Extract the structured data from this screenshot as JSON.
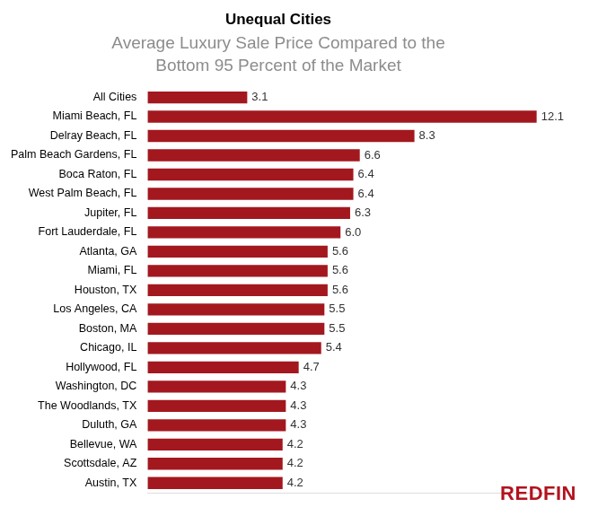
{
  "chart_data": {
    "type": "bar",
    "orientation": "horizontal",
    "title": "Unequal Cities",
    "subtitle": [
      "Average Luxury Sale Price Compared to the",
      "Bottom 95 Percent of the Market"
    ],
    "annotations": [
      "REDFIN"
    ],
    "categories": [
      "All Cities",
      "Miami Beach, FL",
      "Delray Beach, FL",
      "Palm Beach Gardens, FL",
      "Boca Raton, FL",
      "West Palm Beach, FL",
      "Jupiter, FL",
      "Fort Lauderdale, FL",
      "Atlanta, GA",
      "Miami, FL",
      "Houston, TX",
      "Los Angeles, CA",
      "Boston, MA",
      "Chicago, IL",
      "Hollywood, FL",
      "Washington, DC",
      "The Woodlands, TX",
      "Duluth, GA",
      "Bellevue, WA",
      "Scottsdale, AZ",
      "Austin, TX"
    ],
    "values": [
      3.1,
      12.1,
      8.3,
      6.6,
      6.4,
      6.4,
      6.3,
      6.0,
      5.6,
      5.6,
      5.6,
      5.5,
      5.5,
      5.4,
      4.7,
      4.3,
      4.3,
      4.3,
      4.2,
      4.2,
      4.2
    ],
    "value_labels": [
      "3.1",
      "12.1",
      "8.3",
      "6.6",
      "6.4",
      "6.4",
      "6.3",
      "6.0",
      "5.6",
      "5.6",
      "5.6",
      "5.5",
      "5.5",
      "5.4",
      "4.7",
      "4.3",
      "4.3",
      "4.3",
      "4.2",
      "4.2",
      "4.2"
    ],
    "color": "#a3181f",
    "xlim": [
      0,
      12.5
    ],
    "grid": false,
    "data_labels": true,
    "tick_labels": "y"
  }
}
